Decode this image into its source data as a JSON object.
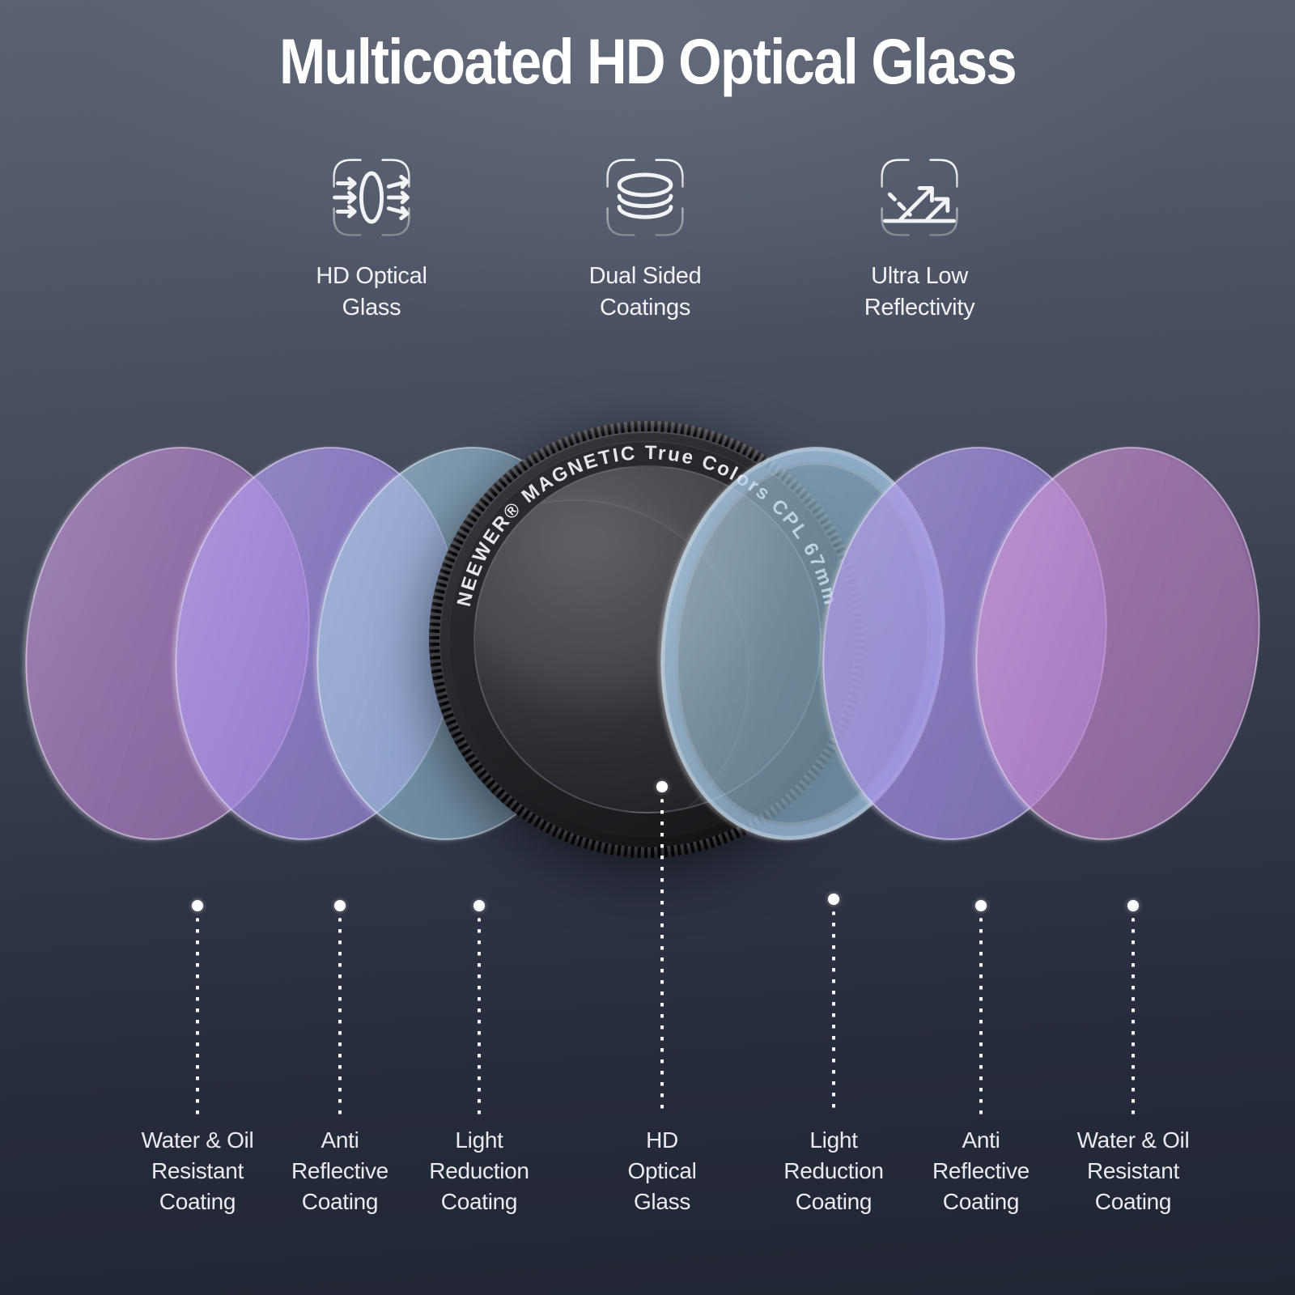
{
  "title": "Multicoated HD Optical Glass",
  "features": [
    {
      "icon": "optical-glass-lens-icon",
      "label": "HD Optical\nGlass"
    },
    {
      "icon": "dual-sided-coatings-icon",
      "label": "Dual Sided\nCoatings"
    },
    {
      "icon": "low-reflectivity-icon",
      "label": "Ultra Low\nReflectivity"
    }
  ],
  "filter": {
    "ring_text": "NEEWER®  MAGNETIC  True  Colors  CPL   67mm",
    "brand": "NEEWER®",
    "product_line": "MAGNETIC True Colors CPL",
    "size": "67mm"
  },
  "layers": [
    {
      "label": "Water & Oil\nResistant\nCoating",
      "color": "#AD70C6"
    },
    {
      "label": "Anti\nReflective\nCoating",
      "color": "#987EE4"
    },
    {
      "label": "Light\nReduction\nCoating",
      "color": "#87B9D7"
    },
    {
      "label": "HD\nOptical\nGlass",
      "color": "#2B2B2F"
    },
    {
      "label": "Light\nReduction\nCoating",
      "color": "#87B9D7"
    },
    {
      "label": "Anti\nReflective\nCoating",
      "color": "#987EE4"
    },
    {
      "label": "Water & Oil\nResistant\nCoating",
      "color": "#B772C4"
    }
  ],
  "colors": {
    "background_top": "#5A6070",
    "background_bottom": "#1F2431",
    "text": "#F2F3F6",
    "leader": "#FFFFFF"
  }
}
